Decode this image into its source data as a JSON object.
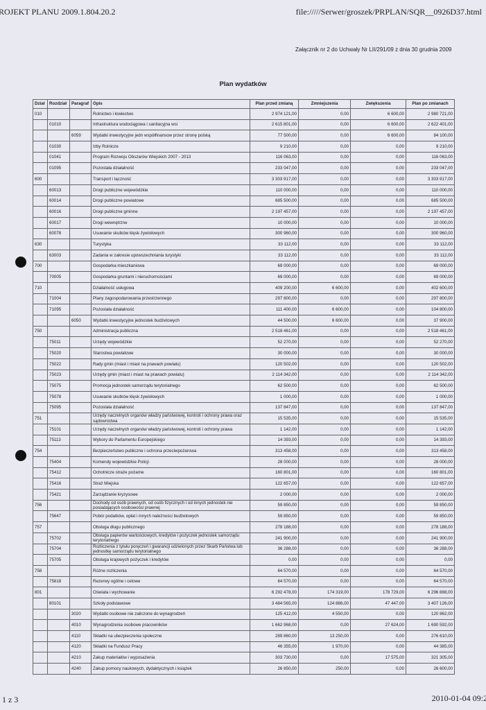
{
  "header": {
    "left": "ROJEKT PLANU 2009.1.804.20.2",
    "right": "file://///Serwer/groszek/PRPLAN/SQR__0926D37.html"
  },
  "attachment": "Załącznik nr 2 do Uchwały Nr LII/291/09 z dnia 30 grudnia 2009",
  "title": "Plan wydatków",
  "table": {
    "columns": [
      "Dział",
      "Rozdział",
      "Paragraf",
      "Opis",
      "Plan przed zmianą",
      "Zmniejszenia",
      "Zwiększenia",
      "Plan po zmianach"
    ],
    "rows": [
      [
        "010",
        null,
        null,
        "Rolnictwo i łowiectwo",
        "2 974 121,00",
        "0,00",
        "6 600,00",
        "2 980 721,00"
      ],
      [
        null,
        "01010",
        null,
        "Infrastruktura wodociągowa i sanitacyjna wsi",
        "2 615 801,00",
        "0,00",
        "6 600,00",
        "2 622 401,00"
      ],
      [
        null,
        null,
        "6059",
        "Wydatki inwestycyjne jedn współfinansow przez stronę polską",
        "77 500,00",
        "0,00",
        "6 600,00",
        "84 100,00"
      ],
      [
        null,
        "01030",
        null,
        "Izby Rolnicze",
        "9 210,00",
        "0,00",
        "0,00",
        "9 210,00"
      ],
      [
        null,
        "01041",
        null,
        "Program Rozwoju Obszarów Wiejskich 2007 - 2013",
        "116 063,00",
        "0,00",
        "0,00",
        "116 063,00"
      ],
      [
        null,
        "01095",
        null,
        "Pozostała działalność",
        "233 047,00",
        "0,00",
        "0,00",
        "233 047,00"
      ],
      [
        "600",
        null,
        null,
        "Transport i łączność",
        "3 303 917,00",
        "0,00",
        "0,00",
        "3 303 917,00"
      ],
      [
        null,
        "60013",
        null,
        "Drogi publiczne wojewódzkie",
        "110 000,00",
        "0,00",
        "0,00",
        "110 000,00"
      ],
      [
        null,
        "60014",
        null,
        "Drogi publiczne powiatowe",
        "685 500,00",
        "0,00",
        "0,00",
        "685 500,00"
      ],
      [
        null,
        "60016",
        null,
        "Drogi publiczne gminne",
        "2 197 457,00",
        "0,00",
        "0,00",
        "2 197 457,00"
      ],
      [
        null,
        "60017",
        null,
        "Drogi wewnętrzne",
        "10 000,00",
        "0,00",
        "0,00",
        "10 000,00"
      ],
      [
        null,
        "60078",
        null,
        "Usuwanie skutków klęsk żywiołowych",
        "300 960,00",
        "0,00",
        "0,00",
        "300 960,00"
      ],
      [
        "630",
        null,
        null,
        "Turystyka",
        "33 112,00",
        "0,00",
        "0,00",
        "33 112,00"
      ],
      [
        null,
        "63003",
        null,
        "Zadania w zakresie upowszechniania turystyki",
        "33 112,00",
        "0,00",
        "0,00",
        "33 112,00"
      ],
      [
        "700",
        null,
        null,
        "Gospodarka mieszkaniowa",
        "69 000,00",
        "0,00",
        "0,00",
        "69 000,00"
      ],
      [
        null,
        "70005",
        null,
        "Gospodarka gruntami i nieruchomościami",
        "69 000,00",
        "0,00",
        "0,00",
        "69 000,00"
      ],
      [
        "710",
        null,
        null,
        "Działalność usługowa",
        "409 200,00",
        "6 600,00",
        "0,00",
        "402 600,00"
      ],
      [
        null,
        "71004",
        null,
        "Plany zagospodarowania przestrzennego",
        "297 800,00",
        "0,00",
        "0,00",
        "297 800,00"
      ],
      [
        null,
        "71095",
        null,
        "Pozostała działalność",
        "111 400,00",
        "6 600,00",
        "0,00",
        "104 800,00"
      ],
      [
        null,
        null,
        "6050",
        "Wydatki inwestycyjne jednostek budżetowych",
        "44 500,00",
        "6 600,00",
        "0,00",
        "37 900,00"
      ],
      [
        "750",
        null,
        null,
        "Administracja publiczna",
        "2 518 461,00",
        "0,00",
        "0,00",
        "2 518 461,00"
      ],
      [
        null,
        "75011",
        null,
        "Urzędy wojewódzkie",
        "52 270,00",
        "0,00",
        "0,00",
        "52 270,00"
      ],
      [
        null,
        "75020",
        null,
        "Starostwa powiatowe",
        "30 000,00",
        "0,00",
        "0,00",
        "30 000,00"
      ],
      [
        null,
        "75022",
        null,
        "Rady gmin (miast i miast na prawach powiatu)",
        "120 502,00",
        "0,00",
        "0,00",
        "120 502,00"
      ],
      [
        null,
        "75023",
        null,
        "Urzędy gmin (miast i miast na prawach powiatu)",
        "2 114 342,00",
        "0,00",
        "0,00",
        "2 114 342,00"
      ],
      [
        null,
        "75075",
        null,
        "Promocja jednostek samorządu terytorialnego",
        "62 500,00",
        "0,00",
        "0,00",
        "62 500,00"
      ],
      [
        null,
        "75078",
        null,
        "Usuwanie skutków klęsk żywiołowych",
        "1 000,00",
        "0,00",
        "0,00",
        "1 000,00"
      ],
      [
        null,
        "75095",
        null,
        "Pozostała działalność",
        "137 847,00",
        "0,00",
        "0,00",
        "137 847,00"
      ],
      [
        "751",
        null,
        null,
        "Urzędy naczelnych organów władzy państwowej, kontroli i ochrony prawa oraz sądownictwa",
        "15 535,00",
        "0,00",
        "0,00",
        "15 535,00"
      ],
      [
        null,
        "75101",
        null,
        "Urzędy naczelnych organów władzy państwowej, kontroli i ochrony prawa",
        "1 142,00",
        "0,00",
        "0,00",
        "1 142,00"
      ],
      [
        null,
        "75113",
        null,
        "Wybory do Parlamentu Europejskiego",
        "14 393,00",
        "0,00",
        "0,00",
        "14 393,00"
      ],
      [
        "754",
        null,
        null,
        "Bezpieczeństwo publiczne i ochrona przeciwpożarowa",
        "313 458,00",
        "0,00",
        "0,00",
        "313 458,00"
      ],
      [
        null,
        "75404",
        null,
        "Komendy wojewódzkie Policji",
        "28 000,00",
        "0,00",
        "0,00",
        "28 000,00"
      ],
      [
        null,
        "75412",
        null,
        "Ochotnicze straże pożarne",
        "160 801,00",
        "0,00",
        "0,00",
        "160 801,00"
      ],
      [
        null,
        "75416",
        null,
        "Straż Miejska",
        "122 657,00",
        "0,00",
        "0,00",
        "122 657,00"
      ],
      [
        null,
        "75421",
        null,
        "Zarządzanie kryzysowe",
        "2 000,00",
        "0,00",
        "0,00",
        "2 000,00"
      ],
      [
        "756",
        null,
        null,
        "Dochody od osób prawnych, od osób fizycznych i od innych jednostek nie posiadających osobowości prawnej",
        "59 850,00",
        "0,00",
        "0,00",
        "59 850,00"
      ],
      [
        null,
        "75647",
        null,
        "Pobór podatków, opłat i innych należności budżetowych",
        "59 850,00",
        "0,00",
        "0,00",
        "59 850,00"
      ],
      [
        "757",
        null,
        null,
        "Obsługa długu publicznego",
        "278 188,00",
        "0,00",
        "0,00",
        "278 188,00"
      ],
      [
        null,
        "75702",
        null,
        "Obsługa papierów wartościowych, kredytów i pożyczek jednostek samorządu terytorialnego",
        "241 900,00",
        "0,00",
        "0,00",
        "241 900,00"
      ],
      [
        null,
        "75704",
        null,
        "Rozliczenia z tytułu poręczeń i gwarancji udzielonych przez Skarb Państwa lub jednostkę samorządu terytorialnego",
        "36 288,00",
        "0,00",
        "0,00",
        "36 288,00"
      ],
      [
        null,
        "75705",
        null,
        "Obsługa krajowych pożyczek i kredytów",
        "0,00",
        "0,00",
        "0,00",
        "0,00"
      ],
      [
        "758",
        null,
        null,
        "Różne rozliczenia",
        "64 570,00",
        "0,00",
        "0,00",
        "64 570,00"
      ],
      [
        null,
        "75818",
        null,
        "Rezerwy ogólne i celowe",
        "64 570,00",
        "0,00",
        "0,00",
        "64 570,00"
      ],
      [
        "801",
        null,
        null,
        "Oświata i wychowanie",
        "6 292 478,00",
        "174 319,00",
        "178 729,00",
        "6 296 888,00"
      ],
      [
        null,
        "80101",
        null,
        "Szkoły podstawowe",
        "3 484 565,00",
        "124 886,00",
        "47 447,00",
        "3 407 126,00"
      ],
      [
        null,
        null,
        "3020",
        "Wydatki osobowe nie zaliczone do wynagrodzeń",
        "125 412,00",
        "4 550,00",
        "0,00",
        "120 862,00"
      ],
      [
        null,
        null,
        "4010",
        "Wynagrodzenia osobowe pracowników",
        "1 662 968,00",
        "0,00",
        "27 624,00",
        "1 690 592,00"
      ],
      [
        null,
        null,
        "4110",
        "Składki na ubezpieczenia społeczne",
        "289 860,00",
        "13 250,00",
        "0,00",
        "276 610,00"
      ],
      [
        null,
        null,
        "4120",
        "Składki na Fundusz Pracy",
        "46 355,00",
        "1 970,00",
        "0,00",
        "44 385,00"
      ],
      [
        null,
        null,
        "4210",
        "Zakup materiałów i wyposażenia",
        "303 730,00",
        "0,00",
        "17 575,00",
        "321 305,00"
      ],
      [
        null,
        null,
        "4240",
        "Zakup pomocy naukowych, dydaktycznych i książek",
        "26 850,00",
        "250,00",
        "0,00",
        "26 600,00"
      ]
    ]
  },
  "footer": {
    "left": "1 z 3",
    "right": "2010-01-04 09:2"
  }
}
